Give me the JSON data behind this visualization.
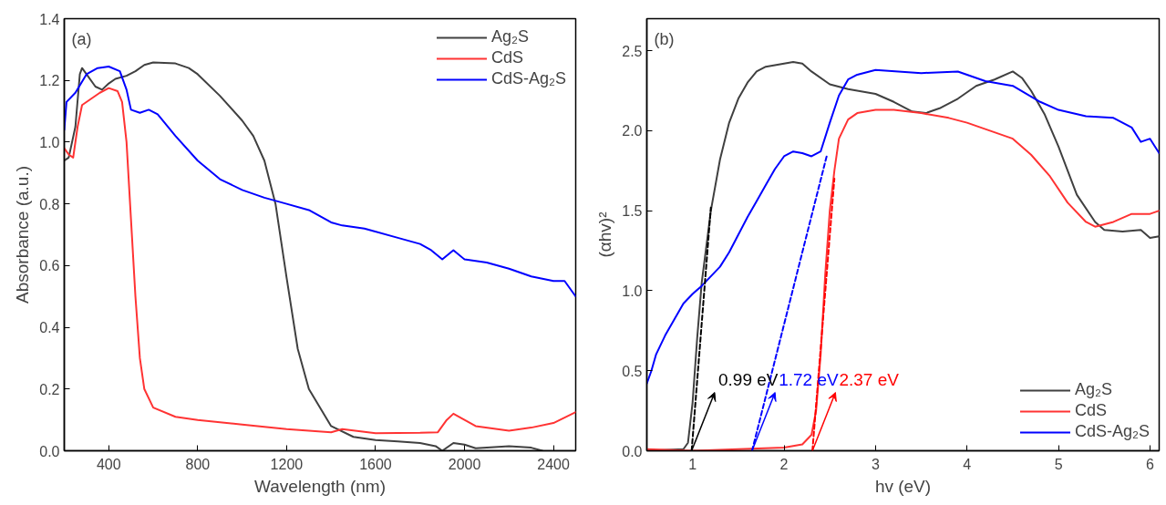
{
  "chart_data": [
    {
      "type": "line",
      "xlabel": "Wavelength (nm)",
      "ylabel": "Absorbance (a.u.)",
      "xlim": [
        200,
        2500
      ],
      "ylim": [
        0,
        1.4
      ],
      "xticks": [
        400,
        800,
        1200,
        1600,
        2000,
        2400
      ],
      "yticks": [
        {
          "value": 0,
          "label": "0.0"
        },
        0.2,
        0.4,
        0.6,
        0.8,
        {
          "value": 1,
          "label": "1.0"
        },
        1.2,
        1.4
      ],
      "legend": "top right",
      "annotations": [
        "(a)"
      ],
      "series": [
        {
          "name": "Ag₂S",
          "color": "#404040",
          "x": [
            200,
            220,
            250,
            270,
            280,
            300,
            340,
            370,
            400,
            430,
            480,
            520,
            560,
            600,
            700,
            760,
            800,
            900,
            1000,
            1050,
            1100,
            1150,
            1200,
            1250,
            1300,
            1400,
            1500,
            1600,
            1700,
            1800,
            1870,
            1900,
            1950,
            2000,
            2050,
            2200,
            2300,
            2350
          ],
          "values": [
            0.94,
            0.95,
            1.05,
            1.22,
            1.24,
            1.22,
            1.18,
            1.17,
            1.19,
            1.205,
            1.215,
            1.23,
            1.25,
            1.258,
            1.255,
            1.24,
            1.22,
            1.15,
            1.07,
            1.02,
            0.94,
            0.8,
            0.56,
            0.33,
            0.2,
            0.08,
            0.045,
            0.035,
            0.03,
            0.025,
            0.015,
            0.0,
            0.025,
            0.02,
            0.008,
            0.015,
            0.01,
            0.0
          ]
        },
        {
          "name": "CdS",
          "color": "#ff3333",
          "x": [
            200,
            220,
            240,
            260,
            280,
            320,
            360,
            400,
            440,
            460,
            480,
            500,
            520,
            540,
            560,
            600,
            700,
            800,
            1000,
            1200,
            1400,
            1450,
            1600,
            1800,
            1880,
            1920,
            1950,
            2000,
            2050,
            2200,
            2300,
            2400,
            2500
          ],
          "values": [
            0.98,
            0.96,
            0.95,
            1.05,
            1.12,
            1.14,
            1.16,
            1.175,
            1.165,
            1.13,
            1.0,
            0.75,
            0.5,
            0.3,
            0.2,
            0.14,
            0.11,
            0.1,
            0.085,
            0.07,
            0.06,
            0.07,
            0.057,
            0.058,
            0.06,
            0.1,
            0.12,
            0.1,
            0.08,
            0.065,
            0.075,
            0.09,
            0.125
          ]
        },
        {
          "name": "CdS-Ag₂S",
          "color": "#0000ff",
          "x": [
            200,
            210,
            250,
            300,
            350,
            400,
            450,
            480,
            500,
            540,
            580,
            620,
            700,
            800,
            900,
            1000,
            1100,
            1200,
            1300,
            1400,
            1450,
            1550,
            1700,
            1800,
            1850,
            1900,
            1950,
            2000,
            2100,
            2200,
            2300,
            2400,
            2450,
            2500
          ],
          "values": [
            1.04,
            1.13,
            1.16,
            1.22,
            1.24,
            1.245,
            1.23,
            1.17,
            1.105,
            1.095,
            1.105,
            1.09,
            1.02,
            0.94,
            0.88,
            0.845,
            0.82,
            0.8,
            0.78,
            0.74,
            0.73,
            0.72,
            0.69,
            0.67,
            0.65,
            0.62,
            0.65,
            0.62,
            0.61,
            0.59,
            0.565,
            0.55,
            0.55,
            0.5
          ]
        }
      ]
    },
    {
      "type": "line",
      "xlabel": "hv (eV)",
      "ylabel": "(αhv)²",
      "xlim": [
        0.5,
        6.1
      ],
      "ylim": [
        0,
        2.7
      ],
      "xticks": [
        1,
        2,
        3,
        4,
        5,
        6
      ],
      "yticks": [
        {
          "value": 0,
          "label": "0.0"
        },
        0.5,
        {
          "value": 1,
          "label": "1.0"
        },
        1.5,
        {
          "value": 2,
          "label": "2.0"
        },
        2.5
      ],
      "legend": "bottom right",
      "annotations": [
        "(b)",
        {
          "text": "0.99 eV",
          "x": 0.99,
          "y": 0
        },
        {
          "text": "1.72 eV",
          "x": 1.65,
          "y": 0
        },
        {
          "text": "2.37 eV",
          "x": 2.31,
          "y": 0
        }
      ],
      "series": [
        {
          "name": "Ag₂S",
          "color": "#404040",
          "x": [
            0.5,
            0.9,
            0.95,
            1.0,
            1.05,
            1.1,
            1.2,
            1.3,
            1.4,
            1.5,
            1.6,
            1.7,
            1.8,
            2.0,
            2.1,
            2.2,
            2.3,
            2.5,
            2.7,
            3.0,
            3.2,
            3.4,
            3.55,
            3.7,
            3.9,
            4.1,
            4.3,
            4.5,
            4.6,
            4.7,
            4.85,
            5.0,
            5.2,
            5.4,
            5.5,
            5.7,
            5.9,
            6.0,
            6.1
          ],
          "values": [
            0.0,
            0.01,
            0.05,
            0.3,
            0.7,
            1.05,
            1.5,
            1.82,
            2.05,
            2.2,
            2.3,
            2.37,
            2.4,
            2.42,
            2.43,
            2.42,
            2.37,
            2.29,
            2.26,
            2.23,
            2.18,
            2.12,
            2.11,
            2.14,
            2.2,
            2.28,
            2.32,
            2.37,
            2.33,
            2.25,
            2.1,
            1.9,
            1.6,
            1.43,
            1.38,
            1.37,
            1.38,
            1.33,
            1.34
          ]
        },
        {
          "name": "CdS",
          "color": "#ff3333",
          "x": [
            0.5,
            1.0,
            1.5,
            2.0,
            2.2,
            2.3,
            2.35,
            2.4,
            2.45,
            2.5,
            2.55,
            2.6,
            2.7,
            2.8,
            3.0,
            3.2,
            3.5,
            3.8,
            4.0,
            4.2,
            4.5,
            4.7,
            4.9,
            5.1,
            5.3,
            5.4,
            5.6,
            5.8,
            6.0,
            6.1
          ],
          "values": [
            0.01,
            0.0,
            0.01,
            0.02,
            0.04,
            0.1,
            0.25,
            0.6,
            1.1,
            1.5,
            1.75,
            1.95,
            2.07,
            2.11,
            2.13,
            2.13,
            2.11,
            2.08,
            2.05,
            2.01,
            1.95,
            1.85,
            1.72,
            1.55,
            1.43,
            1.4,
            1.43,
            1.48,
            1.48,
            1.5
          ]
        },
        {
          "name": "CdS-Ag₂S",
          "color": "#0000ff",
          "x": [
            0.5,
            0.55,
            0.6,
            0.7,
            0.8,
            0.9,
            1.0,
            1.1,
            1.3,
            1.4,
            1.5,
            1.6,
            1.7,
            1.8,
            1.9,
            2.0,
            2.1,
            2.2,
            2.3,
            2.4,
            2.5,
            2.6,
            2.7,
            2.8,
            3.0,
            3.5,
            3.9,
            4.2,
            4.5,
            4.8,
            5.0,
            5.3,
            5.6,
            5.8,
            5.9,
            6.0,
            6.1
          ],
          "values": [
            0.42,
            0.5,
            0.6,
            0.72,
            0.82,
            0.92,
            0.98,
            1.03,
            1.15,
            1.24,
            1.35,
            1.46,
            1.56,
            1.66,
            1.76,
            1.84,
            1.87,
            1.86,
            1.84,
            1.87,
            2.05,
            2.22,
            2.32,
            2.35,
            2.38,
            2.36,
            2.37,
            2.31,
            2.28,
            2.18,
            2.13,
            2.09,
            2.08,
            2.02,
            1.93,
            1.95,
            1.86
          ]
        },
        {
          "color": "#000000",
          "line_style": "dashed",
          "x": [
            0.99,
            1.2
          ],
          "values": [
            0,
            1.52
          ]
        },
        {
          "color": "#0000ff",
          "line_style": "dashed",
          "x": [
            1.65,
            2.47
          ],
          "values": [
            0,
            1.85
          ]
        },
        {
          "color": "#ff0000",
          "line_style": "dashed",
          "x": [
            2.31,
            2.55
          ],
          "values": [
            0,
            1.7
          ]
        }
      ]
    }
  ]
}
